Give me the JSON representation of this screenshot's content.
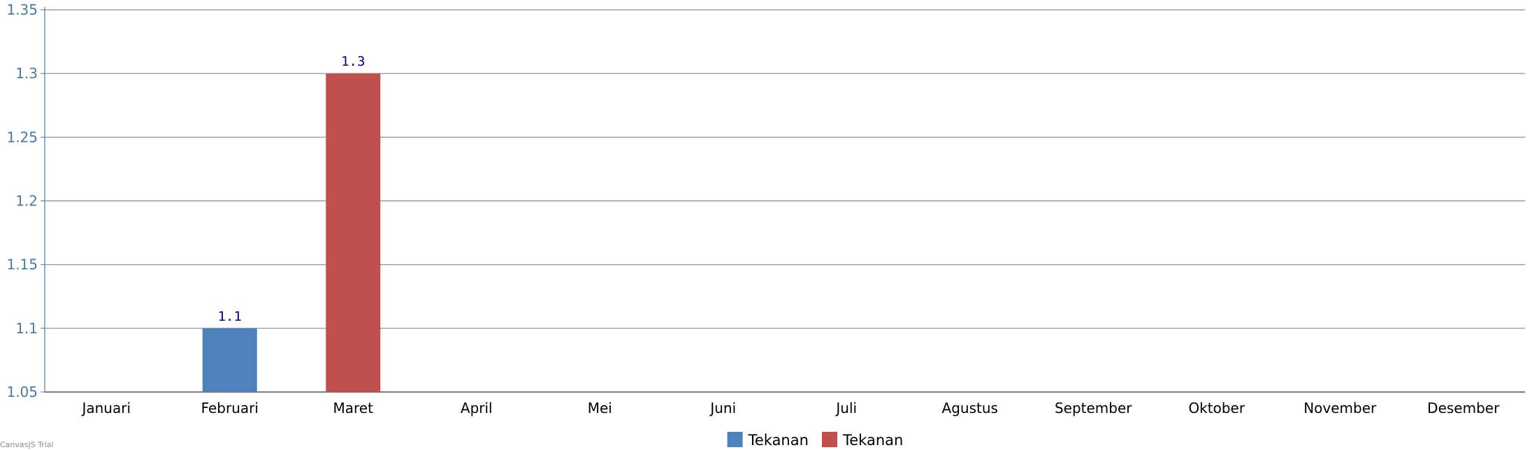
{
  "chart_data": {
    "type": "bar",
    "title": "",
    "xlabel": "",
    "ylabel": "",
    "categories": [
      "Januari",
      "Februari",
      "Maret",
      "April",
      "Mei",
      "Juni",
      "Juli",
      "Agustus",
      "September",
      "Oktober",
      "November",
      "Desember"
    ],
    "y_ticks": [
      "1.35",
      "1.3",
      "1.25",
      "1.2",
      "1.15",
      "1.1",
      "1.05"
    ],
    "ylim": [
      1.05,
      1.35
    ],
    "grid": true,
    "legend_position": "bottom-center",
    "series": [
      {
        "name": "Tekanan",
        "color": "#4f81bc",
        "values": [
          null,
          1.1,
          null,
          null,
          null,
          null,
          null,
          null,
          null,
          null,
          null,
          null
        ]
      },
      {
        "name": "Tekanan",
        "color": "#c0504e",
        "values": [
          null,
          null,
          1.3,
          null,
          null,
          null,
          null,
          null,
          null,
          null,
          null,
          null
        ]
      }
    ],
    "label_color": "#00008b",
    "axis_color": "#4a7ba7",
    "grid_color": "#7f8c99"
  },
  "watermark": "CanvasJS Trial"
}
